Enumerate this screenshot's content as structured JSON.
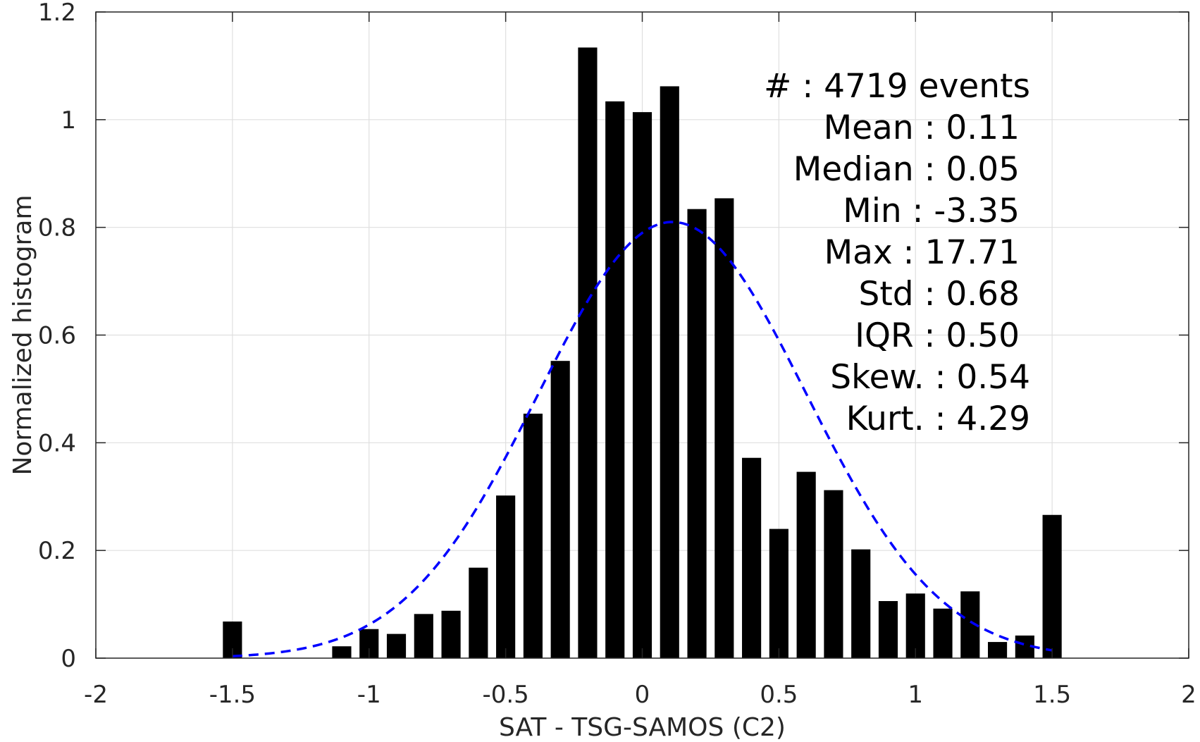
{
  "chart_data": {
    "type": "bar",
    "xlabel": "SAT - TSG-SAMOS (C2)",
    "ylabel": "Normalized histogram",
    "xlim": [
      -2,
      2
    ],
    "ylim": [
      0,
      1.2
    ],
    "xticks": [
      -2,
      -1.5,
      -1,
      -0.5,
      0,
      0.5,
      1,
      1.5,
      2
    ],
    "xtick_labels": [
      "-2",
      "-1.5",
      "-1",
      "-0.5",
      "0",
      "0.5",
      "1",
      "1.5",
      "2"
    ],
    "yticks": [
      0,
      0.2,
      0.4,
      0.6,
      0.8,
      1,
      1.2
    ],
    "ytick_labels": [
      "0",
      "0.2",
      "0.4",
      "0.6",
      "0.8",
      "1",
      "1.2"
    ],
    "grid": true,
    "bar_color": "#000000",
    "bar_width": 0.07,
    "bars": {
      "x": [
        -1.5,
        -1.1,
        -1.0,
        -0.9,
        -0.8,
        -0.7,
        -0.6,
        -0.5,
        -0.4,
        -0.3,
        -0.2,
        -0.1,
        0.0,
        0.1,
        0.2,
        0.3,
        0.4,
        0.5,
        0.6,
        0.7,
        0.8,
        0.9,
        1.0,
        1.1,
        1.2,
        1.3,
        1.4,
        1.5
      ],
      "values": [
        0.068,
        0.022,
        0.054,
        0.045,
        0.082,
        0.088,
        0.168,
        0.302,
        0.454,
        0.552,
        1.134,
        1.034,
        1.014,
        1.062,
        0.834,
        0.854,
        0.372,
        0.24,
        0.346,
        0.312,
        0.202,
        0.106,
        0.12,
        0.092,
        0.124,
        0.03,
        0.042,
        0.266
      ]
    },
    "fit_curve": {
      "type": "normal-pdf",
      "mean": 0.11,
      "std": 0.49,
      "peak": 0.81,
      "x_range": [
        -1.5,
        1.5
      ],
      "color": "#0000ff",
      "line_style": "dashed"
    },
    "annotation_lines": [
      "#  : 4719 events",
      "Mean : 0.11",
      "Median : 0.05",
      "Min : -3.35",
      "Max : 17.71",
      "Std : 0.68",
      "IQR : 0.50",
      "Skew. : 0.54",
      "Kurt. : 4.29"
    ]
  }
}
